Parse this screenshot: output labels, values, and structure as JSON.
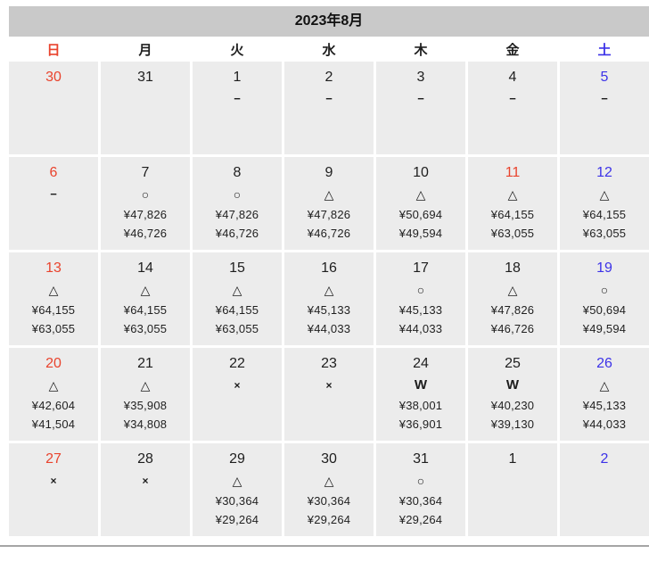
{
  "calendar": {
    "title": "2023年8月",
    "weekday_header": [
      {
        "label": "日",
        "type": "sun"
      },
      {
        "label": "月",
        "type": "wd"
      },
      {
        "label": "火",
        "type": "wd"
      },
      {
        "label": "水",
        "type": "wd"
      },
      {
        "label": "木",
        "type": "wd"
      },
      {
        "label": "金",
        "type": "wd"
      },
      {
        "label": "土",
        "type": "sat"
      }
    ],
    "colors": {
      "sunday_red": "#e9432d",
      "saturday_blue": "#3c32e8",
      "weekday_black": "#1e1e1e",
      "cell_bg": "#ececec",
      "header_bg": "#c9c9c9",
      "bottom_rule": "#a5a5a5"
    },
    "legend_symbols": {
      "available": "○",
      "few_left": "△",
      "sold_out": "×",
      "waitlist": "W",
      "not_for_sale": "−"
    },
    "weeks": [
      [
        {
          "day": "30",
          "color": "sun",
          "symbol": "",
          "price1": "",
          "price2": ""
        },
        {
          "day": "31",
          "color": "wd",
          "symbol": "",
          "price1": "",
          "price2": ""
        },
        {
          "day": "1",
          "color": "wd",
          "symbol": "−",
          "price1": "",
          "price2": ""
        },
        {
          "day": "2",
          "color": "wd",
          "symbol": "−",
          "price1": "",
          "price2": ""
        },
        {
          "day": "3",
          "color": "wd",
          "symbol": "−",
          "price1": "",
          "price2": ""
        },
        {
          "day": "4",
          "color": "wd",
          "symbol": "−",
          "price1": "",
          "price2": ""
        },
        {
          "day": "5",
          "color": "sat",
          "symbol": "−",
          "price1": "",
          "price2": ""
        }
      ],
      [
        {
          "day": "6",
          "color": "sun",
          "symbol": "−",
          "price1": "",
          "price2": ""
        },
        {
          "day": "7",
          "color": "wd",
          "symbol": "○",
          "price1": "¥47,826",
          "price2": "¥46,726"
        },
        {
          "day": "8",
          "color": "wd",
          "symbol": "○",
          "price1": "¥47,826",
          "price2": "¥46,726"
        },
        {
          "day": "9",
          "color": "wd",
          "symbol": "△",
          "price1": "¥47,826",
          "price2": "¥46,726"
        },
        {
          "day": "10",
          "color": "wd",
          "symbol": "△",
          "price1": "¥50,694",
          "price2": "¥49,594"
        },
        {
          "day": "11",
          "color": "sun",
          "symbol": "△",
          "price1": "¥64,155",
          "price2": "¥63,055"
        },
        {
          "day": "12",
          "color": "sat",
          "symbol": "△",
          "price1": "¥64,155",
          "price2": "¥63,055"
        }
      ],
      [
        {
          "day": "13",
          "color": "sun",
          "symbol": "△",
          "price1": "¥64,155",
          "price2": "¥63,055"
        },
        {
          "day": "14",
          "color": "wd",
          "symbol": "△",
          "price1": "¥64,155",
          "price2": "¥63,055"
        },
        {
          "day": "15",
          "color": "wd",
          "symbol": "△",
          "price1": "¥64,155",
          "price2": "¥63,055"
        },
        {
          "day": "16",
          "color": "wd",
          "symbol": "△",
          "price1": "¥45,133",
          "price2": "¥44,033"
        },
        {
          "day": "17",
          "color": "wd",
          "symbol": "○",
          "price1": "¥45,133",
          "price2": "¥44,033"
        },
        {
          "day": "18",
          "color": "wd",
          "symbol": "△",
          "price1": "¥47,826",
          "price2": "¥46,726"
        },
        {
          "day": "19",
          "color": "sat",
          "symbol": "○",
          "price1": "¥50,694",
          "price2": "¥49,594"
        }
      ],
      [
        {
          "day": "20",
          "color": "sun",
          "symbol": "△",
          "price1": "¥42,604",
          "price2": "¥41,504"
        },
        {
          "day": "21",
          "color": "wd",
          "symbol": "△",
          "price1": "¥35,908",
          "price2": "¥34,808"
        },
        {
          "day": "22",
          "color": "wd",
          "symbol": "×",
          "price1": "",
          "price2": ""
        },
        {
          "day": "23",
          "color": "wd",
          "symbol": "×",
          "price1": "",
          "price2": ""
        },
        {
          "day": "24",
          "color": "wd",
          "symbol": "W",
          "price1": "¥38,001",
          "price2": "¥36,901"
        },
        {
          "day": "25",
          "color": "wd",
          "symbol": "W",
          "price1": "¥40,230",
          "price2": "¥39,130"
        },
        {
          "day": "26",
          "color": "sat",
          "symbol": "△",
          "price1": "¥45,133",
          "price2": "¥44,033"
        }
      ],
      [
        {
          "day": "27",
          "color": "sun",
          "symbol": "×",
          "price1": "",
          "price2": ""
        },
        {
          "day": "28",
          "color": "wd",
          "symbol": "×",
          "price1": "",
          "price2": ""
        },
        {
          "day": "29",
          "color": "wd",
          "symbol": "△",
          "price1": "¥30,364",
          "price2": "¥29,264"
        },
        {
          "day": "30",
          "color": "wd",
          "symbol": "△",
          "price1": "¥30,364",
          "price2": "¥29,264"
        },
        {
          "day": "31",
          "color": "wd",
          "symbol": "○",
          "price1": "¥30,364",
          "price2": "¥29,264"
        },
        {
          "day": "1",
          "color": "wd",
          "symbol": "",
          "price1": "",
          "price2": ""
        },
        {
          "day": "2",
          "color": "sat",
          "symbol": "",
          "price1": "",
          "price2": ""
        }
      ]
    ]
  }
}
